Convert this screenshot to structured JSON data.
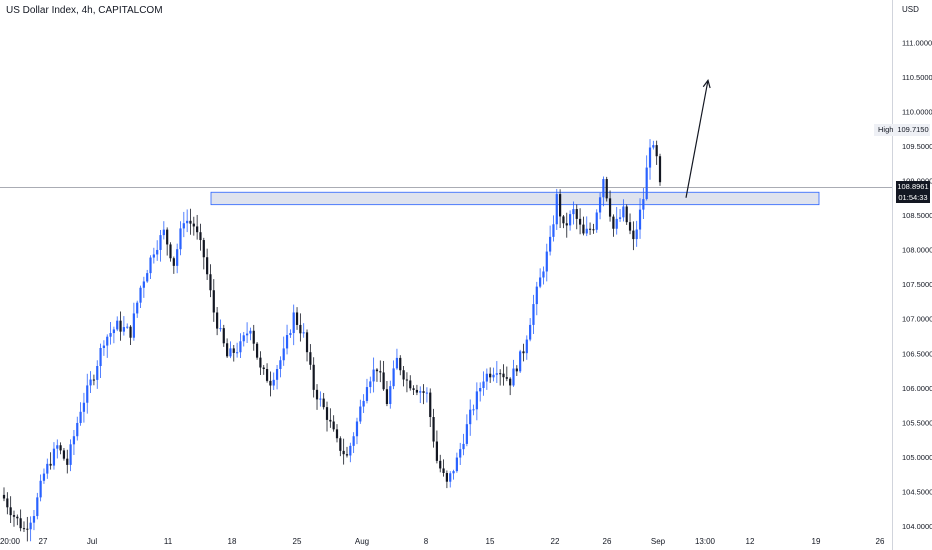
{
  "header": {
    "title": "US Dollar Index, 4h, CAPITALCOM"
  },
  "price_axis": {
    "currency": "USD",
    "high_label": "High",
    "high_value": "109.7150",
    "last_price": "108.8961",
    "countdown": "01:54:33"
  },
  "colors": {
    "bullish_candle": "#2962ff",
    "bearish_candle": "#131722",
    "zone_fill": "#dfe3ee",
    "zone_border": "#2962ff",
    "price_line": "#787b86",
    "arrow": "#131722"
  },
  "chart_data": {
    "type": "candlestick",
    "title": "US Dollar Index, 4h, CAPITALCOM",
    "ylabel": "USD",
    "ylim": [
      103.9,
      111.45
    ],
    "yticks": [
      "104.0000",
      "104.5000",
      "105.0000",
      "105.5000",
      "106.0000",
      "106.5000",
      "107.0000",
      "107.5000",
      "108.0000",
      "108.5000",
      "109.0000",
      "109.5000",
      "110.0000",
      "110.5000",
      "111.0000"
    ],
    "xticks": [
      "20:00",
      "27",
      "Jul",
      "11",
      "18",
      "25",
      "Aug",
      "8",
      "15",
      "22",
      "26",
      "Sep",
      "13:00",
      "12",
      "19",
      "26"
    ],
    "grid": false,
    "close_path": [
      {
        "t": 0,
        "p": 104.4
      },
      {
        "t": 3,
        "p": 104.15
      },
      {
        "t": 6,
        "p": 103.95
      },
      {
        "t": 9,
        "p": 104.2
      },
      {
        "t": 12,
        "p": 104.75
      },
      {
        "t": 16,
        "p": 105.15
      },
      {
        "t": 19,
        "p": 104.9
      },
      {
        "t": 23,
        "p": 105.7
      },
      {
        "t": 27,
        "p": 106.2
      },
      {
        "t": 30,
        "p": 106.7
      },
      {
        "t": 34,
        "p": 106.9
      },
      {
        "t": 38,
        "p": 106.8
      },
      {
        "t": 41,
        "p": 107.45
      },
      {
        "t": 45,
        "p": 108.0
      },
      {
        "t": 48,
        "p": 108.25
      },
      {
        "t": 51,
        "p": 107.8
      },
      {
        "t": 54,
        "p": 108.45
      },
      {
        "t": 57,
        "p": 108.35
      },
      {
        "t": 60,
        "p": 107.9
      },
      {
        "t": 63,
        "p": 107.1
      },
      {
        "t": 67,
        "p": 106.45
      },
      {
        "t": 71,
        "p": 106.6
      },
      {
        "t": 74,
        "p": 106.9
      },
      {
        "t": 77,
        "p": 106.25
      },
      {
        "t": 80,
        "p": 106.1
      },
      {
        "t": 84,
        "p": 106.5
      },
      {
        "t": 87,
        "p": 107.05
      },
      {
        "t": 90,
        "p": 106.75
      },
      {
        "t": 93,
        "p": 106.0
      },
      {
        "t": 97,
        "p": 105.6
      },
      {
        "t": 100,
        "p": 105.2
      },
      {
        "t": 103,
        "p": 105.0
      },
      {
        "t": 106,
        "p": 105.5
      },
      {
        "t": 109,
        "p": 106.1
      },
      {
        "t": 112,
        "p": 106.3
      },
      {
        "t": 115,
        "p": 105.8
      },
      {
        "t": 118,
        "p": 106.4
      },
      {
        "t": 121,
        "p": 106.1
      },
      {
        "t": 124,
        "p": 106.0
      },
      {
        "t": 127,
        "p": 105.9
      },
      {
        "t": 130,
        "p": 104.95
      },
      {
        "t": 133,
        "p": 104.6
      },
      {
        "t": 136,
        "p": 104.95
      },
      {
        "t": 140,
        "p": 105.6
      },
      {
        "t": 144,
        "p": 106.15
      },
      {
        "t": 148,
        "p": 106.3
      },
      {
        "t": 152,
        "p": 106.1
      },
      {
        "t": 156,
        "p": 106.55
      },
      {
        "t": 159,
        "p": 107.2
      },
      {
        "t": 162,
        "p": 107.75
      },
      {
        "t": 164,
        "p": 108.1
      },
      {
        "t": 166,
        "p": 108.75
      },
      {
        "t": 168,
        "p": 108.3
      },
      {
        "t": 171,
        "p": 108.55
      },
      {
        "t": 174,
        "p": 108.2
      },
      {
        "t": 177,
        "p": 108.35
      },
      {
        "t": 180,
        "p": 109.05
      },
      {
        "t": 183,
        "p": 108.3
      },
      {
        "t": 186,
        "p": 108.55
      },
      {
        "t": 189,
        "p": 108.1
      },
      {
        "t": 192,
        "p": 108.75
      },
      {
        "t": 194,
        "p": 109.55
      },
      {
        "t": 196,
        "p": 109.3
      },
      {
        "t": 197,
        "p": 108.9
      }
    ],
    "resistance_zone": {
      "low": 108.65,
      "high": 108.83
    },
    "last_price": 108.8961,
    "session_high": 109.715,
    "projection": {
      "from_price": 108.75,
      "to_price": 110.45
    }
  }
}
